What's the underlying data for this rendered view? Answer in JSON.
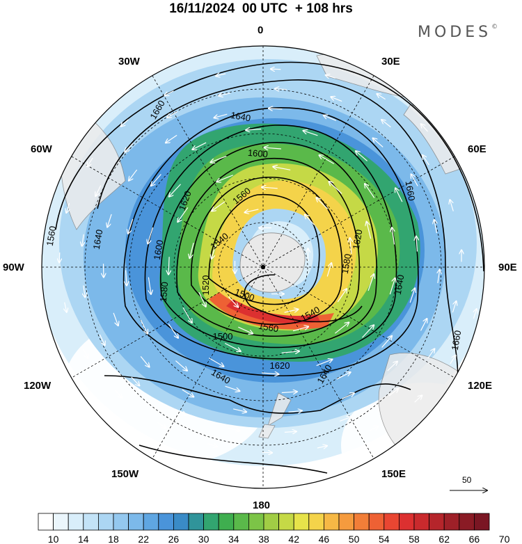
{
  "title": "16/11/2024  00 UTC  + 108 hrs",
  "brand": "MODES",
  "brand_mark": "©",
  "longitude_labels": {
    "lon_0": "0",
    "lon_30e": "30E",
    "lon_60e": "60E",
    "lon_90e": "90E",
    "lon_120e": "120E",
    "lon_150e": "150E",
    "lon_180": "180",
    "lon_150w": "150W",
    "lon_120w": "120W",
    "lon_90w": "90W",
    "lon_60w": "60W",
    "lon_30w": "30W"
  },
  "contour_labels": [
    {
      "id": "c1660a",
      "text": "1660"
    },
    {
      "id": "c1640a",
      "text": "1640"
    },
    {
      "id": "c1600a",
      "text": "1600"
    },
    {
      "id": "c1620a",
      "text": "1620"
    },
    {
      "id": "c1560a",
      "text": "1560"
    },
    {
      "id": "c1560b",
      "text": "1560"
    },
    {
      "id": "c1640b",
      "text": "1640"
    },
    {
      "id": "c1600b",
      "text": "1600"
    },
    {
      "id": "c1540a",
      "text": "1540"
    },
    {
      "id": "c1520a",
      "text": "1520"
    },
    {
      "id": "c1580a",
      "text": "1580"
    },
    {
      "id": "c1500a",
      "text": "1500"
    },
    {
      "id": "c1500b",
      "text": "1500"
    },
    {
      "id": "c1560c",
      "text": "1560"
    },
    {
      "id": "c1540b",
      "text": "1540"
    },
    {
      "id": "c1580b",
      "text": "1580"
    },
    {
      "id": "c1620b",
      "text": "1620"
    },
    {
      "id": "c1640c",
      "text": "1640"
    },
    {
      "id": "c1640d",
      "text": "1640"
    },
    {
      "id": "c1660b",
      "text": "1660"
    },
    {
      "id": "c1660c",
      "text": "1660"
    },
    {
      "id": "c1620c",
      "text": "1620"
    },
    {
      "id": "c1640e",
      "text": "1640"
    }
  ],
  "wind_scale": {
    "value": "50"
  },
  "colorbar": {
    "ticks": [
      "10",
      "14",
      "18",
      "22",
      "26",
      "30",
      "34",
      "38",
      "42",
      "46",
      "50",
      "54",
      "58",
      "62",
      "66",
      "70"
    ],
    "colors": [
      "#ffffff",
      "#ebf6fc",
      "#d9eefa",
      "#c3e3f7",
      "#acd6f3",
      "#94c8ef",
      "#7cb9ea",
      "#5fa6e2",
      "#4a94da",
      "#3a8bc7",
      "#30949a",
      "#32a570",
      "#3fae4f",
      "#5ab94a",
      "#7cc447",
      "#a1cd45",
      "#c5d946",
      "#e7e34a",
      "#f4d34a",
      "#f6b845",
      "#f59b3e",
      "#f27e38",
      "#ee6134",
      "#e94632",
      "#dc3030",
      "#c92a2d",
      "#b5252b",
      "#9e2028",
      "#8a1b25",
      "#7a1623"
    ]
  }
}
